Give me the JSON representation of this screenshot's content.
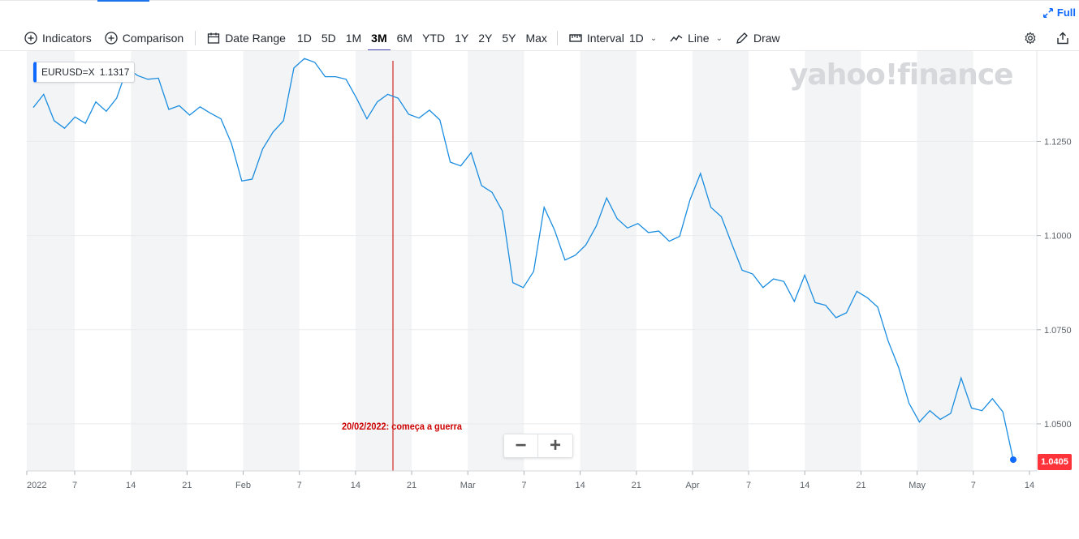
{
  "toolbar": {
    "full_label": "Full",
    "indicators_label": "Indicators",
    "comparison_label": "Comparison",
    "date_range_label": "Date Range",
    "ranges": [
      "1D",
      "5D",
      "1M",
      "3M",
      "6M",
      "YTD",
      "1Y",
      "2Y",
      "5Y",
      "Max"
    ],
    "active_range": "3M",
    "interval_label": "Interval",
    "interval_value": "1D",
    "chart_type_label": "Line",
    "draw_label": "Draw"
  },
  "ticker": {
    "symbol": "EURUSD=X",
    "value": "1.1317"
  },
  "watermark": "yahoo!finance",
  "last_price_tag": "1.0405",
  "annotation": "20/02/2022: começa a guerra",
  "colors": {
    "line": "#1a8de0",
    "annotation": "#cc0000",
    "active_tab": "#4646b4",
    "price_tag": "#ff333a",
    "accent": "#0f69ff"
  },
  "chart_data": {
    "type": "line",
    "title": "",
    "xlabel": "",
    "ylabel": "",
    "series": [
      {
        "values": [
          1.134,
          1.1375,
          1.1305,
          1.1285,
          1.1315,
          1.1298,
          1.1355,
          1.133,
          1.1365,
          1.1445,
          1.1425,
          1.1415,
          1.1418,
          1.1335,
          1.1345,
          1.132,
          1.1342,
          1.1325,
          1.131,
          1.1245,
          1.1145,
          1.115,
          1.123,
          1.1275,
          1.1305,
          1.1445,
          1.147,
          1.146,
          1.1422,
          1.1422,
          1.1415,
          1.1365,
          1.131,
          1.1355,
          1.1375,
          1.1365,
          1.1322,
          1.1312,
          1.1333,
          1.1307,
          1.1195,
          1.1185,
          1.122,
          1.1133,
          1.1115,
          1.1065,
          1.0875,
          1.0862,
          1.0905,
          1.1075,
          1.1015,
          1.0935,
          1.0948,
          1.0975,
          1.1025,
          1.11,
          1.1045,
          1.102,
          1.1032,
          1.1008,
          1.1012,
          1.0985,
          1.0998,
          1.1095,
          1.1165,
          1.1075,
          1.105,
          1.0978,
          1.0908,
          1.0898,
          1.0862,
          1.0885,
          1.0878,
          1.0825,
          1.0895,
          1.0822,
          1.0815,
          1.0782,
          1.0795,
          1.0852,
          1.0835,
          1.081,
          1.072,
          1.065,
          1.0555,
          1.0505,
          1.0535,
          1.0512,
          1.0528,
          1.0622,
          1.0542,
          1.0535,
          1.0567,
          1.0532,
          1.0405
        ]
      }
    ],
    "x_ticks": [
      "2022",
      "7",
      "14",
      "21",
      "Feb",
      "7",
      "14",
      "21",
      "Mar",
      "7",
      "14",
      "21",
      "Apr",
      "7",
      "14",
      "21",
      "May",
      "7",
      "14"
    ],
    "y_ticks": [
      "1.1250",
      "1.1000",
      "1.0750",
      "1.0500"
    ],
    "ylim": [
      1.0375,
      1.149
    ],
    "grid": true,
    "event_marker": {
      "date": "20/02/2022",
      "label": "20/02/2022: começa a guerra"
    },
    "last_value": 1.0405
  }
}
